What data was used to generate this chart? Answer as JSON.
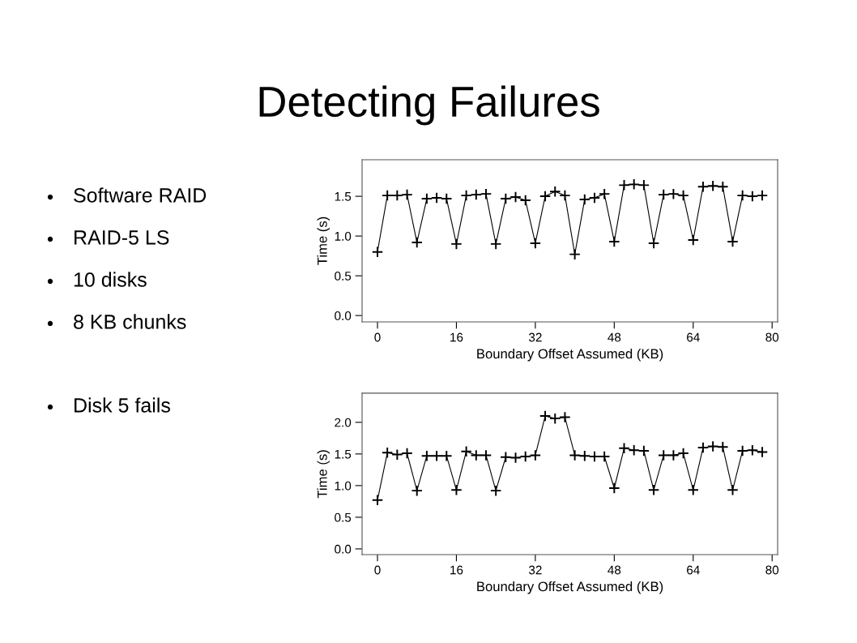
{
  "chart_data": [
    {
      "type": "other",
      "title": "Detecting Failures",
      "annotations": [
        "Software RAID",
        "RAID-5 LS",
        "10 disks",
        "8 KB chunks",
        "Disk 5 fails"
      ]
    },
    {
      "type": "line",
      "xlabel": "Boundary Offset Assumed (KB)",
      "ylabel": "Time (s)",
      "xlim": [
        -3.12,
        81.12
      ],
      "xticks": [
        0,
        16,
        32,
        48,
        64,
        80
      ],
      "ylim": [
        -0.08,
        1.96
      ],
      "yticks": [
        {
          "value": 0,
          "label": "0.0"
        },
        {
          "value": 0.5,
          "label": "0.5"
        },
        {
          "value": 1,
          "label": "1.0"
        },
        {
          "value": 1.5,
          "label": "1.5"
        }
      ],
      "marker": "cross",
      "x": [
        0,
        2,
        4,
        6,
        8,
        10,
        12,
        14,
        16,
        18,
        20,
        22,
        24,
        26,
        28,
        30,
        32,
        34,
        36,
        38,
        40,
        42,
        44,
        46,
        48,
        50,
        52,
        54,
        56,
        58,
        60,
        62,
        64,
        66,
        68,
        70,
        72,
        74,
        76,
        78
      ],
      "series": [
        {
          "color": "#000000",
          "values": [
            0.8,
            1.51,
            1.51,
            1.52,
            0.92,
            1.47,
            1.48,
            1.47,
            0.9,
            1.51,
            1.52,
            1.53,
            0.9,
            1.47,
            1.49,
            1.45,
            0.91,
            1.5,
            1.56,
            1.51,
            0.77,
            1.46,
            1.48,
            1.53,
            0.93,
            1.64,
            1.65,
            1.64,
            0.91,
            1.52,
            1.53,
            1.51,
            0.95,
            1.62,
            1.63,
            1.62,
            0.93,
            1.51,
            1.5,
            1.51
          ]
        }
      ]
    },
    {
      "type": "line",
      "xlabel": "Boundary Offset Assumed (KB)",
      "ylabel": "Time (s)",
      "xlim": [
        -3.12,
        81.12
      ],
      "xticks": [
        0,
        16,
        32,
        48,
        64,
        80
      ],
      "ylim": [
        -0.09,
        2.46
      ],
      "yticks": [
        {
          "value": 0,
          "label": "0.0"
        },
        {
          "value": 0.5,
          "label": "0.5"
        },
        {
          "value": 1,
          "label": "1.0"
        },
        {
          "value": 1.5,
          "label": "1.5"
        },
        {
          "value": 2,
          "label": "2.0"
        }
      ],
      "marker": "cross",
      "x": [
        0,
        2,
        4,
        6,
        8,
        10,
        12,
        14,
        16,
        18,
        20,
        22,
        24,
        26,
        28,
        30,
        32,
        34,
        36,
        38,
        40,
        42,
        44,
        46,
        48,
        50,
        52,
        54,
        56,
        58,
        60,
        62,
        64,
        66,
        68,
        70,
        72,
        74,
        76,
        78
      ],
      "series": [
        {
          "color": "#000000",
          "values": [
            0.77,
            1.52,
            1.49,
            1.51,
            0.92,
            1.47,
            1.47,
            1.47,
            0.93,
            1.54,
            1.48,
            1.48,
            0.92,
            1.45,
            1.44,
            1.46,
            1.48,
            2.1,
            2.06,
            2.08,
            1.48,
            1.47,
            1.46,
            1.46,
            0.96,
            1.59,
            1.56,
            1.55,
            0.93,
            1.48,
            1.48,
            1.51,
            0.93,
            1.6,
            1.62,
            1.61,
            0.93,
            1.55,
            1.56,
            1.53
          ]
        }
      ]
    }
  ]
}
